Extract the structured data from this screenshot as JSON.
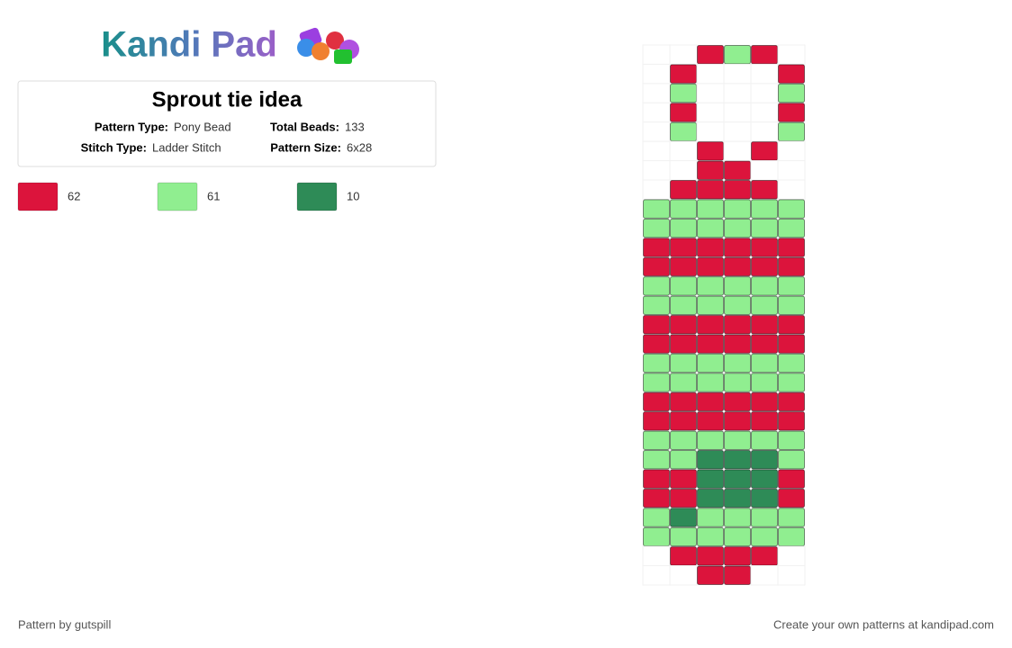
{
  "logo": "Kandi Pad",
  "title": "Sprout tie idea",
  "info": [
    {
      "label": "Pattern Type:",
      "value": "Pony Bead"
    },
    {
      "label": "Total Beads:",
      "value": 133
    },
    {
      "label": "Stitch Type:",
      "value": "Ladder Stitch"
    },
    {
      "label": "Pattern Size:",
      "value": "6x28"
    }
  ],
  "palette": [
    {
      "color": "#dc143c",
      "count": 62
    },
    {
      "color": "#90ee90",
      "count": 61
    },
    {
      "color": "#2e8b57",
      "count": 10
    }
  ],
  "grid": [
    "..010.",
    ".0...0",
    ".1...1",
    ".0...0",
    ".1...1",
    "..0.0.",
    "..00..",
    ".0000.",
    "111111",
    "111111",
    "000000",
    "000000",
    "111111",
    "111111",
    "000000",
    "000000",
    "111111",
    "111111",
    "000000",
    "000000",
    "111111",
    "112221",
    "002220",
    "002220",
    "121111",
    "111111",
    ".0000.",
    "..00.."
  ],
  "footer": {
    "left": "Pattern by gutspill",
    "right": "Create your own patterns at kandipad.com"
  }
}
